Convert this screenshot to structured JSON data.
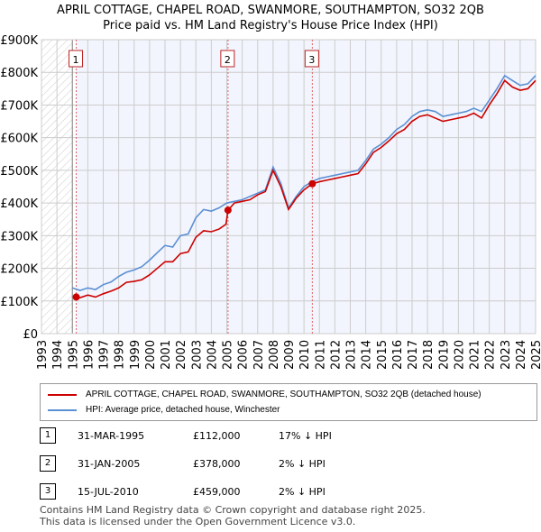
{
  "title": "APRIL COTTAGE, CHAPEL ROAD, SWANMORE, SOUTHAMPTON, SO32 2QB",
  "subtitle": "Price paid vs. HM Land Registry's House Price Index (HPI)",
  "chart_data": {
    "type": "line",
    "xlim": [
      1993,
      2025
    ],
    "ylim": [
      0,
      900000
    ],
    "yticks": [
      {
        "v": 0,
        "label": "£0"
      },
      {
        "v": 100000,
        "label": "£100K"
      },
      {
        "v": 200000,
        "label": "£200K"
      },
      {
        "v": 300000,
        "label": "£300K"
      },
      {
        "v": 400000,
        "label": "£400K"
      },
      {
        "v": 500000,
        "label": "£500K"
      },
      {
        "v": 600000,
        "label": "£600K"
      },
      {
        "v": 700000,
        "label": "£700K"
      },
      {
        "v": 800000,
        "label": "£800K"
      },
      {
        "v": 900000,
        "label": "£900K"
      }
    ],
    "xticks": [
      "1993",
      "1994",
      "1995",
      "1996",
      "1997",
      "1998",
      "1999",
      "2000",
      "2001",
      "2002",
      "2003",
      "2004",
      "2005",
      "2006",
      "2007",
      "2008",
      "2009",
      "2010",
      "2011",
      "2012",
      "2013",
      "2014",
      "2015",
      "2016",
      "2017",
      "2018",
      "2019",
      "2020",
      "2021",
      "2022",
      "2023",
      "2024",
      "2025"
    ],
    "series": [
      {
        "name": "APRIL COTTAGE, CHAPEL ROAD, SWANMORE, SOUTHAMPTON, SO32 2QB (detached house)",
        "color": "#cc0000",
        "x": [
          1995.25,
          1995.5,
          1996,
          1996.5,
          1997,
          1997.5,
          1998,
          1998.5,
          1999,
          1999.5,
          2000,
          2000.5,
          2001,
          2001.5,
          2002,
          2002.5,
          2003,
          2003.5,
          2004,
          2004.5,
          2004.95,
          2005.08,
          2005.5,
          2006,
          2006.5,
          2007,
          2007.5,
          2008,
          2008.5,
          2009,
          2009.5,
          2010,
          2010.54,
          2011,
          2011.5,
          2012,
          2012.5,
          2013,
          2013.5,
          2014,
          2014.5,
          2015,
          2015.5,
          2016,
          2016.5,
          2017,
          2017.5,
          2018,
          2018.5,
          2019,
          2019.5,
          2020,
          2020.5,
          2021,
          2021.5,
          2022,
          2022.5,
          2023,
          2023.5,
          2024,
          2024.5,
          2025
        ],
        "y": [
          112000,
          110000,
          118000,
          112000,
          122000,
          130000,
          140000,
          157000,
          160000,
          165000,
          180000,
          200000,
          220000,
          220000,
          245000,
          250000,
          295000,
          315000,
          312000,
          320000,
          335000,
          378000,
          400000,
          405000,
          410000,
          425000,
          435000,
          500000,
          450000,
          380000,
          415000,
          440000,
          459000,
          465000,
          470000,
          475000,
          480000,
          485000,
          490000,
          520000,
          555000,
          570000,
          590000,
          612000,
          625000,
          650000,
          665000,
          670000,
          660000,
          650000,
          655000,
          660000,
          665000,
          675000,
          660000,
          700000,
          735000,
          775000,
          755000,
          745000,
          750000,
          775000
        ]
      },
      {
        "name": "HPI: Average price, detached house, Winchester",
        "color": "#5b8fd4",
        "x": [
          1995,
          1995.5,
          1996,
          1996.5,
          1997,
          1997.5,
          1998,
          1998.5,
          1999,
          1999.5,
          2000,
          2000.5,
          2001,
          2001.5,
          2002,
          2002.5,
          2003,
          2003.5,
          2004,
          2004.5,
          2005,
          2005.5,
          2006,
          2006.5,
          2007,
          2007.5,
          2008,
          2008.5,
          2009,
          2009.5,
          2010,
          2010.5,
          2011,
          2011.5,
          2012,
          2012.5,
          2013,
          2013.5,
          2014,
          2014.5,
          2015,
          2015.5,
          2016,
          2016.5,
          2017,
          2017.5,
          2018,
          2018.5,
          2019,
          2019.5,
          2020,
          2020.5,
          2021,
          2021.5,
          2022,
          2022.5,
          2023,
          2023.5,
          2024,
          2024.5,
          2025
        ],
        "y": [
          140000,
          132000,
          140000,
          135000,
          150000,
          158000,
          175000,
          188000,
          195000,
          205000,
          225000,
          248000,
          270000,
          265000,
          300000,
          305000,
          355000,
          380000,
          375000,
          385000,
          400000,
          405000,
          410000,
          420000,
          430000,
          440000,
          510000,
          460000,
          385000,
          420000,
          450000,
          465000,
          475000,
          480000,
          485000,
          490000,
          495000,
          500000,
          530000,
          565000,
          580000,
          600000,
          625000,
          640000,
          665000,
          680000,
          685000,
          680000,
          665000,
          670000,
          675000,
          680000,
          690000,
          680000,
          715000,
          750000,
          790000,
          775000,
          760000,
          765000,
          790000
        ]
      }
    ],
    "sales": [
      {
        "n": "1",
        "x": 1995.25,
        "y": 112000
      },
      {
        "n": "2",
        "x": 2005.08,
        "y": 378000
      },
      {
        "n": "3",
        "x": 2010.54,
        "y": 459000
      }
    ]
  },
  "transactions": [
    {
      "n": "1",
      "date": "31-MAR-1995",
      "price": "£112,000",
      "hpi": "17% ↓ HPI"
    },
    {
      "n": "2",
      "date": "31-JAN-2005",
      "price": "£378,000",
      "hpi": "2% ↓ HPI"
    },
    {
      "n": "3",
      "date": "15-JUL-2010",
      "price": "£459,000",
      "hpi": "2% ↓ HPI"
    }
  ],
  "footer": [
    "Contains HM Land Registry data © Crown copyright and database right 2025.",
    "This data is licensed under the Open Government Licence v3.0."
  ]
}
